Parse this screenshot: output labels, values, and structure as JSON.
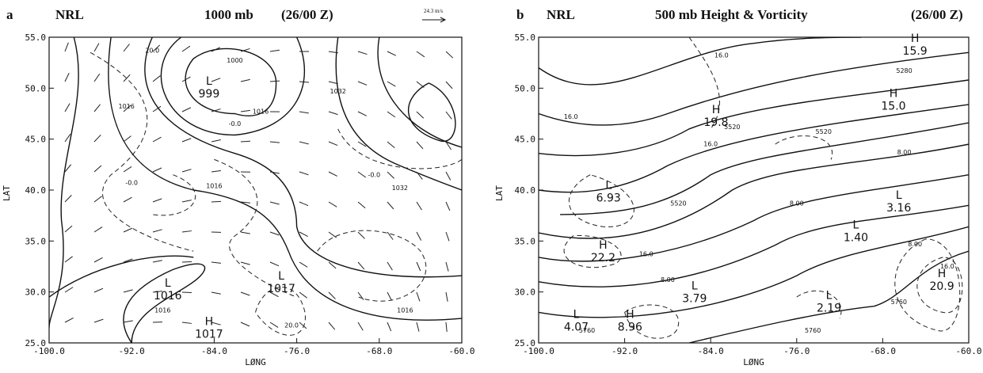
{
  "chart_data": [
    {
      "type": "contour",
      "panel": "a",
      "source": "NRL",
      "title": "1000 mb",
      "time": "(26/00 Z)",
      "scale_label": "24.3 m/s",
      "xlabel": "LØNG",
      "ylabel": "LAT",
      "xlim": [
        -100,
        -60
      ],
      "ylim": [
        25,
        55
      ],
      "xticks": [
        {
          "value": -100,
          "label": "-100.0"
        },
        {
          "value": -92,
          "label": "-92.0"
        },
        {
          "value": -84,
          "label": "-84.0"
        },
        {
          "value": -76,
          "label": "-76.0"
        },
        {
          "value": -68,
          "label": "-68.0"
        },
        {
          "value": -60,
          "label": "-60.0"
        }
      ],
      "yticks": [
        {
          "value": 25,
          "label": "25.0"
        },
        {
          "value": 30,
          "label": "30.0"
        },
        {
          "value": 35,
          "label": "35.0"
        },
        {
          "value": 40,
          "label": "40.0"
        },
        {
          "value": 45,
          "label": "45.0"
        },
        {
          "value": 50,
          "label": "50.0"
        },
        {
          "value": 55,
          "label": "55.0"
        }
      ],
      "systems": [
        {
          "symbol": "L",
          "text": "999",
          "lon": -84.5,
          "lat": 49.4
        },
        {
          "symbol": "L",
          "text": "1016",
          "lon": -88.5,
          "lat": 29.6
        },
        {
          "symbol": "L",
          "text": "1017",
          "lon": -77.5,
          "lat": 30.3
        },
        {
          "symbol": "H",
          "text": "1017",
          "lon": -84.5,
          "lat": 25.8
        }
      ],
      "contour_labels": [
        {
          "text": "1000",
          "lon": -82,
          "lat": 52.5
        },
        {
          "text": "1016",
          "lon": -92.5,
          "lat": 48
        },
        {
          "text": "20.0",
          "lon": -90,
          "lat": 53.5
        },
        {
          "text": "1016",
          "lon": -79.5,
          "lat": 47.5
        },
        {
          "text": "1032",
          "lon": -72,
          "lat": 49.5
        },
        {
          "text": "-0.0",
          "lon": -82,
          "lat": 46.3
        },
        {
          "text": "-0.0",
          "lon": -92,
          "lat": 40.5
        },
        {
          "text": "1016",
          "lon": -84,
          "lat": 40.2
        },
        {
          "text": "-0.0",
          "lon": -68.5,
          "lat": 41.3
        },
        {
          "text": "1032",
          "lon": -66,
          "lat": 40
        },
        {
          "text": "1016",
          "lon": -89,
          "lat": 28
        },
        {
          "text": "20.0",
          "lon": -76.5,
          "lat": 26.5
        },
        {
          "text": "1016",
          "lon": -65.5,
          "lat": 28
        }
      ]
    },
    {
      "type": "contour",
      "panel": "b",
      "source": "NRL",
      "title": "500 mb  Height & Vorticity",
      "time": "(26/00 Z)",
      "xlabel": "LØNG",
      "ylabel": "LAT",
      "xlim": [
        -100,
        -60
      ],
      "ylim": [
        25,
        55
      ],
      "xticks": [
        {
          "value": -100,
          "label": "-100.0"
        },
        {
          "value": -92,
          "label": "-92.0"
        },
        {
          "value": -84,
          "label": "-84.0"
        },
        {
          "value": -76,
          "label": "-76.0"
        },
        {
          "value": -68,
          "label": "-68.0"
        },
        {
          "value": -60,
          "label": "-60.0"
        }
      ],
      "yticks": [
        {
          "value": 25,
          "label": "25.0"
        },
        {
          "value": 30,
          "label": "30.0"
        },
        {
          "value": 35,
          "label": "35.0"
        },
        {
          "value": 40,
          "label": "40.0"
        },
        {
          "value": 45,
          "label": "45.0"
        },
        {
          "value": 50,
          "label": "50.0"
        },
        {
          "value": 55,
          "label": "55.0"
        }
      ],
      "systems": [
        {
          "symbol": "H",
          "text": "15.9",
          "lon": -65,
          "lat": 53.6
        },
        {
          "symbol": "H",
          "text": "15.0",
          "lon": -67,
          "lat": 48.2
        },
        {
          "symbol": "H",
          "text": "19.8",
          "lon": -83.5,
          "lat": 46.6
        },
        {
          "symbol": "L",
          "text": "6.93",
          "lon": -93.5,
          "lat": 39.2
        },
        {
          "symbol": "L",
          "text": "3.16",
          "lon": -66.5,
          "lat": 38.2
        },
        {
          "symbol": "L",
          "text": "1.40",
          "lon": -70.5,
          "lat": 35.3
        },
        {
          "symbol": "H",
          "text": "22.2",
          "lon": -94,
          "lat": 33.3
        },
        {
          "symbol": "H",
          "text": "20.9",
          "lon": -62.5,
          "lat": 30.5
        },
        {
          "symbol": "L",
          "text": "3.79",
          "lon": -85.5,
          "lat": 29.3
        },
        {
          "symbol": "L",
          "text": "2.19",
          "lon": -73,
          "lat": 28.4
        },
        {
          "symbol": "L",
          "text": "4.07",
          "lon": -96.5,
          "lat": 26.5
        },
        {
          "symbol": "H",
          "text": "8.96",
          "lon": -91.5,
          "lat": 26.5
        }
      ],
      "contour_labels": [
        {
          "text": "16.0",
          "lon": -83,
          "lat": 53
        },
        {
          "text": "5280",
          "lon": -66,
          "lat": 51.5
        },
        {
          "text": "16.0",
          "lon": -97,
          "lat": 47
        },
        {
          "text": "5520",
          "lon": -82,
          "lat": 46
        },
        {
          "text": "16.0",
          "lon": -84,
          "lat": 44.3
        },
        {
          "text": "5520",
          "lon": -73.5,
          "lat": 45.5
        },
        {
          "text": "8.00",
          "lon": -66,
          "lat": 43.5
        },
        {
          "text": "5520",
          "lon": -87,
          "lat": 38.5
        },
        {
          "text": "8.00",
          "lon": -76,
          "lat": 38.5
        },
        {
          "text": "16.0",
          "lon": -90,
          "lat": 33.5
        },
        {
          "text": "8.00",
          "lon": -88,
          "lat": 31
        },
        {
          "text": "8.00",
          "lon": -65,
          "lat": 34.5
        },
        {
          "text": "16.0",
          "lon": -62,
          "lat": 32.3
        },
        {
          "text": "5760",
          "lon": -74.5,
          "lat": 26
        },
        {
          "text": "5760",
          "lon": -66.5,
          "lat": 28.8
        },
        {
          "text": "5760",
          "lon": -95.5,
          "lat": 26
        }
      ]
    }
  ]
}
